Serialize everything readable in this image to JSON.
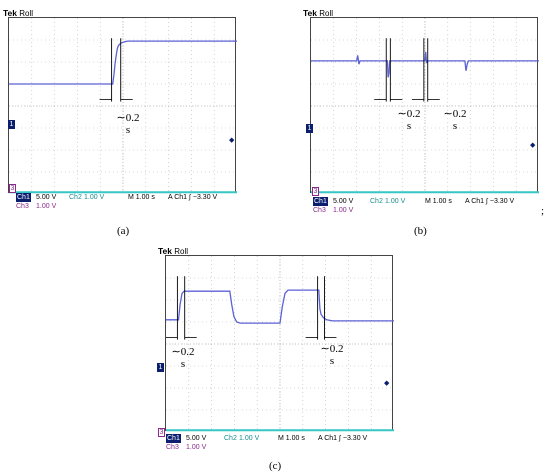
{
  "panels": [
    {
      "id": "a",
      "brand": "Tek",
      "mode": "Roll",
      "caption": "(a)",
      "annotations": [
        {
          "approx": "∼0.2",
          "unit": "s"
        }
      ],
      "readout": {
        "ch1_label": "Ch1",
        "ch1_scale": "5.00 V",
        "ch2_label": "Ch2",
        "ch2_scale": "1.00 V",
        "timebase": "M 1.00 s",
        "trigger": "A  Ch1  ∫  −3.30 V",
        "ch3_label": "Ch3",
        "ch3_scale": "1.00 V"
      },
      "markers": {
        "ch1": "1",
        "ch3": "3"
      }
    },
    {
      "id": "b",
      "brand": "Tek",
      "mode": "Roll",
      "caption": "(b)",
      "annotations": [
        {
          "approx": "∼0.2",
          "unit": "s"
        },
        {
          "approx": "∼0.2",
          "unit": "s"
        }
      ],
      "readout": {
        "ch1_label": "Ch1",
        "ch1_scale": "5.00 V",
        "ch2_label": "Ch2",
        "ch2_scale": "1.00 V",
        "timebase": "M 1.00 s",
        "trigger": "A  Ch1  ∫  −3.30 V",
        "ch3_label": "Ch3",
        "ch3_scale": "1.00 V"
      },
      "markers": {
        "ch1": "1",
        "ch3": "3"
      }
    },
    {
      "id": "c",
      "brand": "Tek",
      "mode": "Roll",
      "caption": "(c)",
      "annotations": [
        {
          "approx": "∼0.2",
          "unit": "s"
        },
        {
          "approx": "∼0.2",
          "unit": "s"
        }
      ],
      "readout": {
        "ch1_label": "Ch1",
        "ch1_scale": "5.00 V",
        "ch2_label": "Ch2",
        "ch2_scale": "1.00 V",
        "timebase": "M 1.00 s",
        "trigger": "A  Ch1  ∫  −3.30 V",
        "ch3_label": "Ch3",
        "ch3_scale": "1.00 V"
      },
      "markers": {
        "ch1": "1",
        "ch3": "3"
      }
    }
  ],
  "separator": ";",
  "colors": {
    "trace": "#5b61d6",
    "trace2": "#35c6c6",
    "grid": "#b7b7b7",
    "ch1_bg": "#0b1f6e",
    "ch3": "#8a2a8a"
  },
  "chart_data": [
    {
      "type": "line",
      "panel": "a",
      "xlim": [
        0,
        10
      ],
      "ylim": [
        0,
        8
      ],
      "series": [
        {
          "x": [
            0,
            4.55,
            4.6,
            4.65,
            4.7,
            4.75,
            4.8,
            4.9,
            5.0,
            5.2,
            10
          ],
          "values": [
            5.0,
            5.0,
            5.4,
            5.9,
            6.3,
            6.6,
            6.75,
            6.85,
            6.9,
            6.95,
            6.95
          ]
        },
        {
          "x": [
            0,
            10
          ],
          "values": [
            0.08,
            0.08
          ]
        }
      ]
    },
    {
      "type": "line",
      "panel": "b",
      "xlim": [
        0,
        10
      ],
      "ylim": [
        0,
        8
      ],
      "series": [
        {
          "x": [
            0,
            2.0,
            2.05,
            2.1,
            2.15,
            3.35,
            3.38,
            3.42,
            3.45,
            5.0,
            5.03,
            5.07,
            5.1,
            6.75,
            6.8,
            6.85,
            6.9,
            10
          ],
          "values": [
            6.05,
            6.05,
            6.3,
            5.9,
            6.05,
            6.05,
            5.3,
            5.5,
            6.05,
            6.05,
            6.45,
            5.95,
            6.05,
            6.05,
            5.6,
            5.9,
            6.05,
            6.05
          ]
        },
        {
          "x": [
            0,
            10
          ],
          "values": [
            0.08,
            0.08
          ]
        }
      ]
    },
    {
      "type": "line",
      "panel": "c",
      "xlim": [
        0,
        10
      ],
      "ylim": [
        0,
        8
      ],
      "series": [
        {
          "x": [
            0,
            0.55,
            0.62,
            0.7,
            0.8,
            2.8,
            2.88,
            2.98,
            3.1,
            3.25,
            5.0,
            5.1,
            5.22,
            5.35,
            6.7,
            6.75,
            6.8,
            6.9,
            7.05,
            7.3,
            10
          ],
          "values": [
            5.1,
            5.1,
            5.8,
            6.3,
            6.4,
            6.4,
            5.8,
            5.25,
            5.0,
            4.95,
            4.95,
            5.7,
            6.3,
            6.45,
            6.45,
            5.6,
            5.35,
            5.2,
            5.1,
            5.05,
            5.05
          ]
        },
        {
          "x": [
            0,
            10
          ],
          "values": [
            0.08,
            0.08
          ]
        }
      ]
    }
  ]
}
